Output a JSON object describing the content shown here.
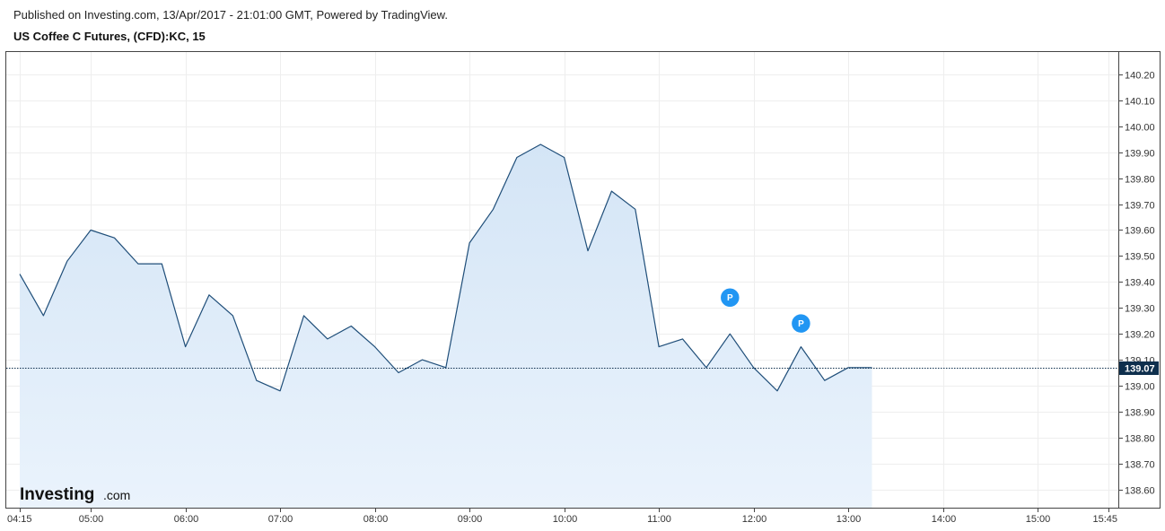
{
  "header": {
    "published": "Published on Investing.com, 13/Apr/2017 - 21:01:00 GMT, Powered by TradingView.",
    "instrument": "US Coffee C Futures, (CFD):KC, 15"
  },
  "brand": {
    "main": "Investing",
    "sub": ".com"
  },
  "chart_data": {
    "type": "area",
    "x_start": "04:15",
    "interval": "15",
    "x_axis_labels": [
      "04:15",
      "05:00",
      "06:00",
      "07:00",
      "08:00",
      "09:00",
      "10:00",
      "11:00",
      "12:00",
      "13:00",
      "14:00",
      "15:00",
      "15:45"
    ],
    "y_axis_labels": [
      "140.20",
      "140.10",
      "140.00",
      "139.90",
      "139.80",
      "139.70",
      "139.60",
      "139.50",
      "139.40",
      "139.30",
      "139.20",
      "139.10",
      "139.00",
      "138.90",
      "138.80",
      "138.70",
      "138.60"
    ],
    "ylim": [
      138.55,
      140.25
    ],
    "grid": true,
    "series": [
      {
        "x": [
          "04:15",
          "04:30",
          "04:45",
          "05:00",
          "05:15",
          "05:30",
          "05:45",
          "06:00",
          "06:15",
          "06:30",
          "06:45",
          "07:00",
          "07:15",
          "07:30",
          "07:45",
          "08:00",
          "08:15",
          "08:30",
          "08:45",
          "09:00",
          "09:15",
          "09:30",
          "09:45",
          "10:00",
          "10:15",
          "10:30",
          "10:45",
          "11:00",
          "11:15",
          "11:30",
          "11:45",
          "12:00",
          "12:15",
          "12:30",
          "12:45",
          "13:00",
          "13:15"
        ],
        "values": [
          139.43,
          139.27,
          139.48,
          139.6,
          139.57,
          139.47,
          139.47,
          139.15,
          139.35,
          139.27,
          139.02,
          138.98,
          139.27,
          139.18,
          139.23,
          139.15,
          139.05,
          139.1,
          139.07,
          139.55,
          139.68,
          139.88,
          139.93,
          139.88,
          139.52,
          139.75,
          139.68,
          139.15,
          139.18,
          139.07,
          139.2,
          139.07,
          138.98,
          139.15,
          139.02,
          139.07,
          139.07
        ]
      }
    ],
    "last_value": 139.07,
    "last_value_label": "139.07",
    "markers": [
      {
        "label": "P",
        "time": "11:45",
        "value": 139.34
      },
      {
        "label": "P",
        "time": "12:30",
        "value": 139.24
      }
    ],
    "colors": {
      "line": "#1f4e79",
      "area": "#dbe9f6",
      "marker": "#2196f3",
      "last_badge": "#0e2f4d"
    }
  }
}
